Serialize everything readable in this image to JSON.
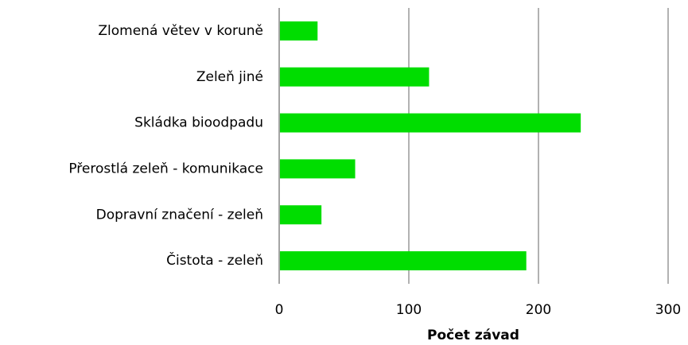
{
  "chart_data": {
    "type": "hbar",
    "categories": [
      "Zlomená větev v koruně",
      "Zeleň jiné",
      "Skládka bioodpadu",
      "Přerostlá zeleň - komunikace",
      "Dopravní značení - zeleň",
      "Čistota - zeleň"
    ],
    "values": [
      29,
      115,
      232,
      58,
      32,
      190
    ],
    "color": "#00dd00",
    "xlabel": "Počet závad",
    "xlim": [
      0,
      300
    ],
    "xticks": [
      0,
      100,
      200,
      300
    ],
    "grid": true
  }
}
